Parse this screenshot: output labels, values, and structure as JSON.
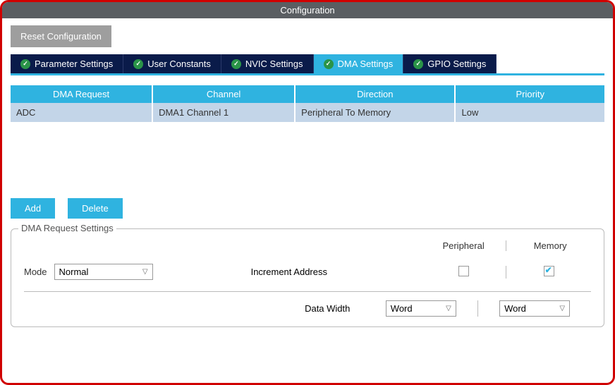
{
  "title": "Configuration",
  "reset_label": "Reset Configuration",
  "tabs": [
    {
      "label": "Parameter Settings",
      "active": false
    },
    {
      "label": "User Constants",
      "active": false
    },
    {
      "label": "NVIC Settings",
      "active": false
    },
    {
      "label": "DMA Settings",
      "active": true
    },
    {
      "label": "GPIO Settings",
      "active": false
    }
  ],
  "table": {
    "headers": [
      "DMA Request",
      "Channel",
      "Direction",
      "Priority"
    ],
    "row": {
      "request": "ADC",
      "channel": "DMA1 Channel 1",
      "direction": "Peripheral To Memory",
      "priority": "Low"
    }
  },
  "buttons": {
    "add": "Add",
    "delete": "Delete"
  },
  "settings": {
    "legend": "DMA Request Settings",
    "peripheral_header": "Peripheral",
    "memory_header": "Memory",
    "mode_label": "Mode",
    "mode_value": "Normal",
    "increment_label": "Increment Address",
    "increment_peripheral": false,
    "increment_memory": true,
    "data_width_label": "Data Width",
    "data_width_peripheral": "Word",
    "data_width_memory": "Word"
  },
  "colors": {
    "accent": "#2fb3e0",
    "tab_bg": "#0a1b4a",
    "title_bg": "#5a5e62",
    "row_bg": "#c3d5e8",
    "border_red": "#d00000"
  }
}
